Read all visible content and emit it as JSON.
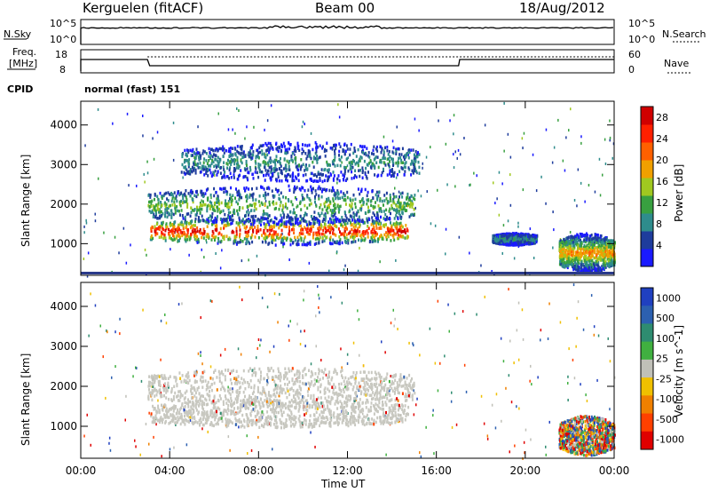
{
  "header": {
    "station": "Kerguelen (fitACF)",
    "beam": "Beam 00",
    "date": "18/Aug/2012"
  },
  "sky_panel": {
    "left_label": "N.Sky",
    "right_label": "N.Search",
    "ticks_left": [
      "10^5",
      "10^0"
    ],
    "ticks_right": [
      "10^5",
      "10^0"
    ]
  },
  "freq_panel": {
    "left_label_line1": "Freq.",
    "left_label_line2": "[MHz]",
    "right_label": "Nave",
    "ticks_left": [
      "18",
      "8"
    ],
    "ticks_right": [
      "60",
      "0"
    ]
  },
  "cpid": {
    "label": "CPID",
    "value": "normal (fast) 151"
  },
  "colors": {
    "power_scale": [
      "#1a1aff",
      "#1e3c9c",
      "#2e8c8c",
      "#38a040",
      "#a0c820",
      "#f0a000",
      "#ff6000",
      "#ff2000",
      "#d00000"
    ],
    "velocity_scale": [
      "#2040c0",
      "#2c60b0",
      "#2e8c70",
      "#40b040",
      "#c0c0b8",
      "#f0c000",
      "#f08000",
      "#ff4000",
      "#e00000"
    ],
    "ground_scatter": "#c8c8c0",
    "baseline": "#2a3a8a"
  },
  "chart_data": [
    {
      "type": "heatmap",
      "title": "",
      "xlabel": "Time UT",
      "ylabel": "Slant Range [km]",
      "x_range_hours": [
        0,
        24
      ],
      "ylim": [
        200,
        4600
      ],
      "x_ticks": [
        "00:00",
        "04:00",
        "08:00",
        "12:00",
        "16:00",
        "20:00",
        "00:00"
      ],
      "y_ticks": [
        1000,
        2000,
        3000,
        4000
      ],
      "colorbar": {
        "label": "Power [dB]",
        "ticks": [
          4,
          8,
          12,
          16,
          20,
          24,
          28
        ],
        "range": [
          0,
          30
        ]
      },
      "regions": [
        {
          "t_start": 3.1,
          "t_end": 14.7,
          "range_low": 1000,
          "range_high": 1700,
          "peak_db": 28
        },
        {
          "t_start": 3.0,
          "t_end": 15.0,
          "range_low": 1500,
          "range_high": 2500,
          "peak_db": 14
        },
        {
          "t_start": 4.5,
          "t_end": 15.2,
          "range_low": 2600,
          "range_high": 3600,
          "peak_db": 10
        },
        {
          "t_start": 18.5,
          "t_end": 20.5,
          "range_low": 1000,
          "range_high": 1300,
          "peak_db": 10
        },
        {
          "t_start": 21.5,
          "t_end": 24.0,
          "range_low": 300,
          "range_high": 1300,
          "peak_db": 20
        }
      ]
    },
    {
      "type": "heatmap",
      "title": "",
      "xlabel": "Time UT",
      "ylabel": "Slant Range [km]",
      "x_range_hours": [
        0,
        24
      ],
      "ylim": [
        200,
        4600
      ],
      "x_ticks": [
        "00:00",
        "04:00",
        "08:00",
        "12:00",
        "16:00",
        "20:00",
        "00:00"
      ],
      "y_ticks": [
        1000,
        2000,
        3000,
        4000
      ],
      "colorbar": {
        "label": "Velocity [m s^-1]",
        "ticks": [
          1000,
          500,
          100,
          25,
          -25,
          -100,
          -500,
          -1000
        ]
      },
      "regions": [
        {
          "t_start": 3.1,
          "t_end": 14.7,
          "range_low": 1000,
          "range_high": 1700,
          "type": "ground"
        },
        {
          "t_start": 3.0,
          "t_end": 15.0,
          "range_low": 1500,
          "range_high": 2500,
          "type": "ground"
        },
        {
          "t_start": 21.5,
          "t_end": 24.0,
          "range_low": 300,
          "range_high": 1300,
          "type": "mixed"
        }
      ]
    }
  ]
}
